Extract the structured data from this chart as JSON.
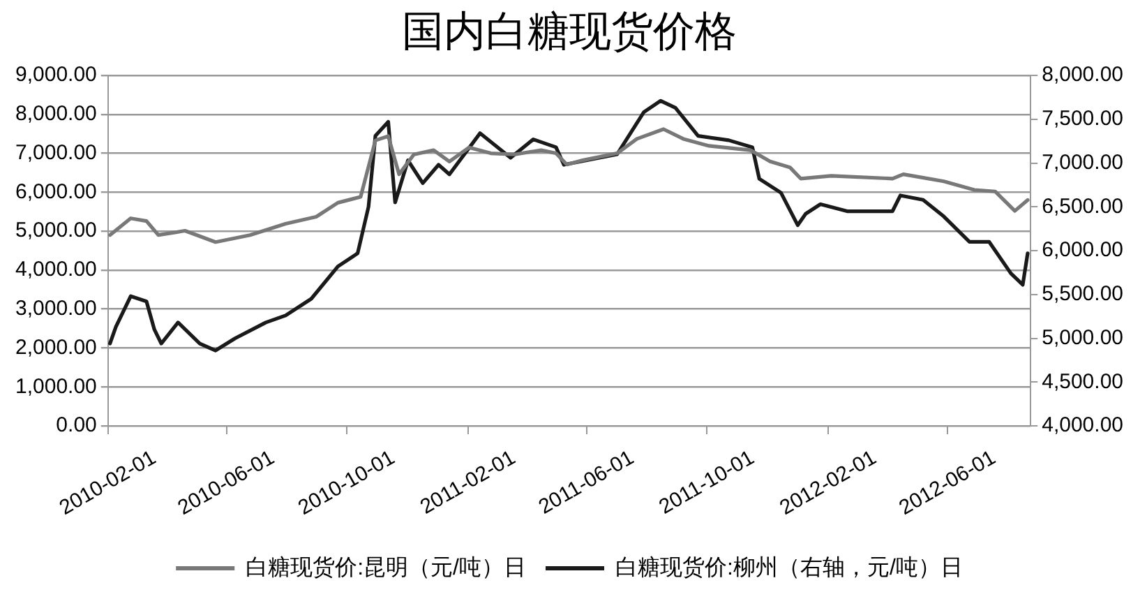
{
  "chart_data": {
    "type": "line",
    "title": "国内白糖现货价格",
    "marker": "none",
    "grid": "y",
    "legend": "bottom",
    "xlim": [
      "2010-02-01",
      "2012-08-24"
    ],
    "xticks": [
      "2010-02-01",
      "2010-06-01",
      "2010-10-01",
      "2011-02-01",
      "2011-06-01",
      "2011-10-01",
      "2012-02-01",
      "2012-06-01"
    ],
    "ylim": [
      0,
      9000
    ],
    "yticks": [
      {
        "value": 0,
        "label": "0.00"
      },
      {
        "value": 1000,
        "label": "1,000.00"
      },
      {
        "value": 2000,
        "label": "2,000.00"
      },
      {
        "value": 3000,
        "label": "3,000.00"
      },
      {
        "value": 4000,
        "label": "4,000.00"
      },
      {
        "value": 5000,
        "label": "5,000.00"
      },
      {
        "value": 6000,
        "label": "6,000.00"
      },
      {
        "value": 7000,
        "label": "7,000.00"
      },
      {
        "value": 8000,
        "label": "8,000.00"
      },
      {
        "value": 9000,
        "label": "9,000.00"
      }
    ],
    "y2lim": [
      4000,
      8000
    ],
    "y2ticks": [
      {
        "value": 4000,
        "label": "4,000.00"
      },
      {
        "value": 4500,
        "label": "4,500.00"
      },
      {
        "value": 5000,
        "label": "5,000.00"
      },
      {
        "value": 5500,
        "label": "5,500.00"
      },
      {
        "value": 6000,
        "label": "6,000.00"
      },
      {
        "value": 6500,
        "label": "6,500.00"
      },
      {
        "value": 7000,
        "label": "7,000.00"
      },
      {
        "value": 7500,
        "label": "7,500.00"
      },
      {
        "value": 8000,
        "label": "8,000.00"
      }
    ],
    "series": [
      {
        "name": "白糖现货价:昆明（元/吨）日",
        "color": "#787878",
        "x": [
          "2010-02-03",
          "2010-02-24",
          "2010-03-12",
          "2010-03-24",
          "2010-04-20",
          "2010-05-21",
          "2010-06-25",
          "2010-07-31",
          "2010-08-31",
          "2010-09-22",
          "2010-10-15",
          "2010-10-30",
          "2010-11-12",
          "2010-11-23",
          "2010-12-08",
          "2010-12-28",
          "2011-01-13",
          "2011-02-02",
          "2011-02-24",
          "2011-03-20",
          "2011-04-16",
          "2011-05-01",
          "2011-05-12",
          "2011-05-28",
          "2011-07-02",
          "2011-07-22",
          "2011-08-18",
          "2011-09-07",
          "2011-10-03",
          "2011-11-14",
          "2011-12-04",
          "2011-12-24",
          "2012-01-04",
          "2012-02-04",
          "2012-04-06",
          "2012-04-17",
          "2012-05-28",
          "2012-06-28",
          "2012-07-19",
          "2012-08-08",
          "2012-08-21"
        ],
        "values": [
          4900,
          5330,
          5260,
          4900,
          5010,
          4720,
          4900,
          5190,
          5370,
          5730,
          5880,
          7330,
          7440,
          6460,
          6970,
          7080,
          6790,
          7150,
          7000,
          6970,
          7080,
          7000,
          6710,
          6820,
          7000,
          7370,
          7620,
          7370,
          7190,
          7080,
          6790,
          6640,
          6350,
          6420,
          6350,
          6460,
          6280,
          6060,
          6020,
          5520,
          5800
        ]
      },
      {
        "name": "白糖现货价:柳州（右轴，元/吨）日",
        "color": "#1a1a1a",
        "axis": "y2",
        "x": [
          "2010-02-03",
          "2010-02-09",
          "2010-02-24",
          "2010-03-12",
          "2010-03-20",
          "2010-03-27",
          "2010-04-13",
          "2010-05-05",
          "2010-05-21",
          "2010-06-10",
          "2010-07-11",
          "2010-07-31",
          "2010-08-26",
          "2010-09-22",
          "2010-10-12",
          "2010-10-23",
          "2010-10-30",
          "2010-11-12",
          "2010-11-19",
          "2010-12-02",
          "2010-12-17",
          "2011-01-02",
          "2011-01-13",
          "2011-02-13",
          "2011-03-16",
          "2011-04-08",
          "2011-05-01",
          "2011-05-09",
          "2011-07-02",
          "2011-07-29",
          "2011-08-15",
          "2011-08-30",
          "2011-09-22",
          "2011-10-23",
          "2011-11-16",
          "2011-11-23",
          "2011-12-15",
          "2012-01-01",
          "2012-01-09",
          "2012-01-24",
          "2012-02-20",
          "2012-04-06",
          "2012-04-14",
          "2012-05-07",
          "2012-05-28",
          "2012-06-23",
          "2012-07-13",
          "2012-08-04",
          "2012-08-16",
          "2012-08-21"
        ],
        "values": [
          4940,
          5130,
          5480,
          5420,
          5100,
          4940,
          5180,
          4940,
          4860,
          5000,
          5180,
          5260,
          5450,
          5820,
          5970,
          6500,
          7310,
          7470,
          6550,
          7030,
          6770,
          6980,
          6870,
          7340,
          7060,
          7270,
          7180,
          6980,
          7100,
          7580,
          7710,
          7630,
          7310,
          7260,
          7180,
          6820,
          6660,
          6290,
          6420,
          6530,
          6450,
          6450,
          6630,
          6580,
          6390,
          6100,
          6100,
          5740,
          5610,
          5970
        ]
      }
    ]
  }
}
